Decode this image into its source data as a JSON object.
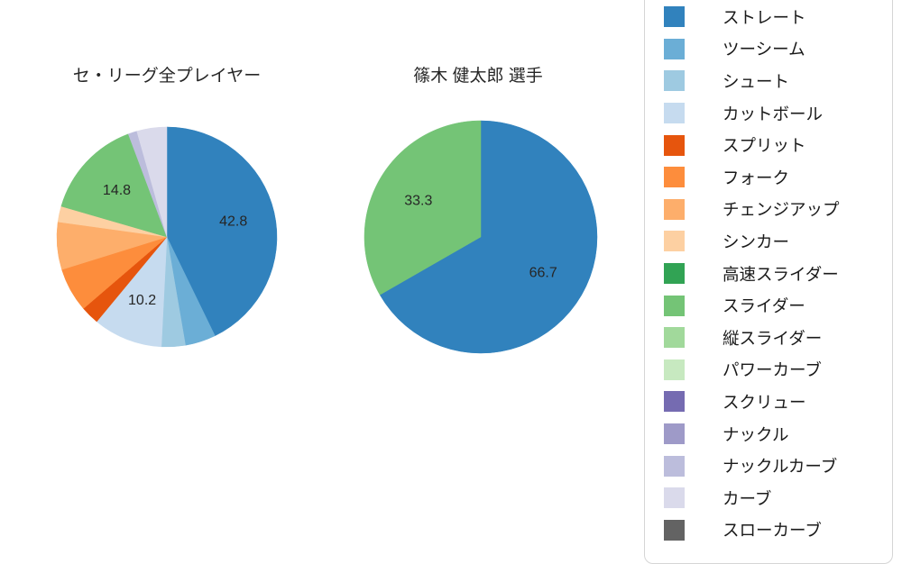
{
  "chart_data": [
    {
      "type": "pie",
      "title": "セ・リーグ全プレイヤー",
      "start_angle": "top",
      "direction": "clockwise",
      "slices": [
        {
          "label": "ストレート",
          "value": 42.8,
          "color": "#3182bd",
          "display": "42.8"
        },
        {
          "label": "ツーシーム",
          "value": 4.5,
          "color": "#6baed6",
          "display": ""
        },
        {
          "label": "シュート",
          "value": 3.5,
          "color": "#9ecae1",
          "display": ""
        },
        {
          "label": "カットボール",
          "value": 10.2,
          "color": "#c6dbef",
          "display": "10.2"
        },
        {
          "label": "スプリット",
          "value": 2.7,
          "color": "#e6550d",
          "display": ""
        },
        {
          "label": "フォーク",
          "value": 6.5,
          "color": "#fd8d3c",
          "display": ""
        },
        {
          "label": "チェンジアップ",
          "value": 7.0,
          "color": "#fdae6b",
          "display": ""
        },
        {
          "label": "シンカー",
          "value": 2.3,
          "color": "#fdd0a2",
          "display": ""
        },
        {
          "label": "スライダー",
          "value": 14.8,
          "color": "#74c476",
          "display": "14.8"
        },
        {
          "label": "ナックルカーブ",
          "value": 1.3,
          "color": "#bcbddc",
          "display": ""
        },
        {
          "label": "カーブ",
          "value": 4.4,
          "color": "#dadaeb",
          "display": ""
        }
      ]
    },
    {
      "type": "pie",
      "title": "篠木 健太郎  選手",
      "start_angle": "top",
      "direction": "clockwise",
      "slices": [
        {
          "label": "ストレート",
          "value": 66.7,
          "color": "#3182bd",
          "display": "66.7"
        },
        {
          "label": "スライダー",
          "value": 33.3,
          "color": "#74c476",
          "display": "33.3"
        }
      ]
    }
  ],
  "legend": {
    "items": [
      {
        "label": "ストレート",
        "color": "#3182bd"
      },
      {
        "label": "ツーシーム",
        "color": "#6baed6"
      },
      {
        "label": "シュート",
        "color": "#9ecae1"
      },
      {
        "label": "カットボール",
        "color": "#c6dbef"
      },
      {
        "label": "スプリット",
        "color": "#e6550d"
      },
      {
        "label": "フォーク",
        "color": "#fd8d3c"
      },
      {
        "label": "チェンジアップ",
        "color": "#fdae6b"
      },
      {
        "label": "シンカー",
        "color": "#fdd0a2"
      },
      {
        "label": "高速スライダー",
        "color": "#31a354"
      },
      {
        "label": "スライダー",
        "color": "#74c476"
      },
      {
        "label": "縦スライダー",
        "color": "#a1d99b"
      },
      {
        "label": "パワーカーブ",
        "color": "#c7e9c0"
      },
      {
        "label": "スクリュー",
        "color": "#756bb1"
      },
      {
        "label": "ナックル",
        "color": "#9e9ac8"
      },
      {
        "label": "ナックルカーブ",
        "color": "#bcbddc"
      },
      {
        "label": "カーブ",
        "color": "#dadaeb"
      },
      {
        "label": "スローカーブ",
        "color": "#636363"
      }
    ]
  }
}
